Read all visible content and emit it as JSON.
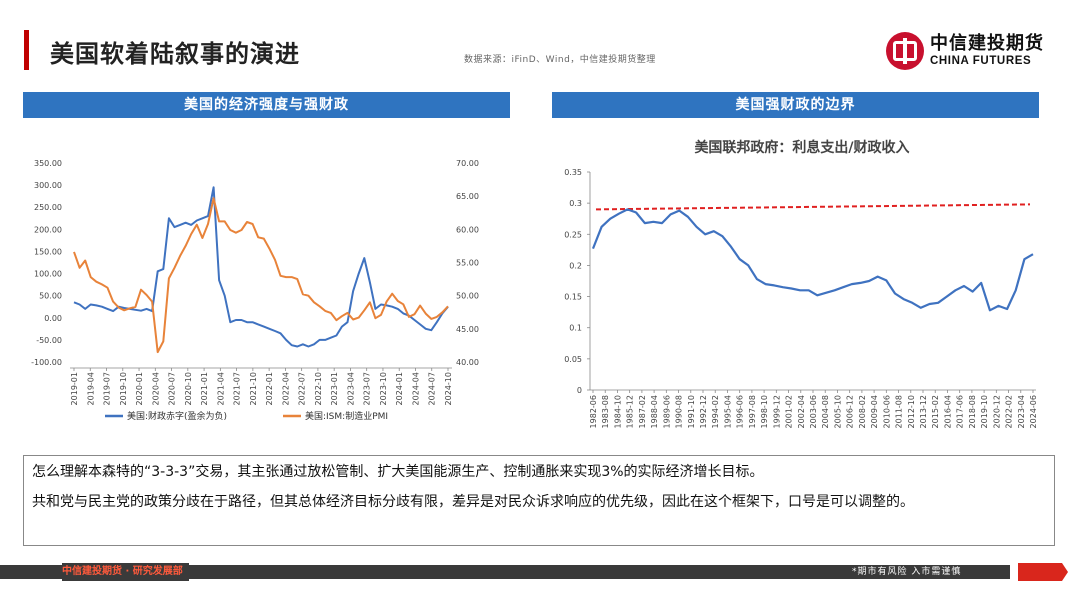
{
  "header": {
    "title": "美国软着陆叙事的演进",
    "source": "数据来源：iFinD、Wind，中信建投期货整理",
    "logo_cn": "中信建投期货",
    "logo_en": "CHINA FUTURES"
  },
  "panels": {
    "left_title": "美国的经济强度与强财政",
    "right_title": "美国强财政的边界"
  },
  "colors": {
    "accent_red": "#c00000",
    "panel_blue": "#2f74c0",
    "series_blue": "#3f72c0",
    "series_orange": "#e8833a",
    "dashed_red": "#e02020"
  },
  "chart_data": [
    {
      "type": "line",
      "title": "",
      "x_ticks": [
        "2019-01",
        "2019-04",
        "2019-07",
        "2019-10",
        "2020-01",
        "2020-04",
        "2020-07",
        "2020-10",
        "2021-01",
        "2021-04",
        "2021-07",
        "2021-10",
        "2022-01",
        "2022-04",
        "2022-07",
        "2022-10",
        "2023-01",
        "2023-04",
        "2023-07",
        "2023-10",
        "2024-01",
        "2024-04",
        "2024-07",
        "2024-10"
      ],
      "y_left": {
        "range": [
          -100,
          350
        ],
        "ticks": [
          "-100.00",
          "-50.00",
          "0.00",
          "50.00",
          "100.00",
          "150.00",
          "200.00",
          "250.00",
          "300.00",
          "350.00"
        ]
      },
      "y_right": {
        "range": [
          40,
          70
        ],
        "ticks": [
          "40.00",
          "45.00",
          "50.00",
          "55.00",
          "60.00",
          "65.00",
          "70.00"
        ]
      },
      "legend_position": "bottom",
      "series": [
        {
          "name": "美国:财政赤字(盈余为负)",
          "axis": "left",
          "color": "#3f72c0",
          "values": [
            35,
            30,
            20,
            30,
            28,
            25,
            20,
            15,
            25,
            22,
            20,
            18,
            16,
            20,
            15,
            105,
            110,
            225,
            205,
            210,
            215,
            210,
            220,
            225,
            230,
            295,
            85,
            50,
            -10,
            -5,
            -5,
            -10,
            -10,
            -15,
            -20,
            -25,
            -30,
            -35,
            -50,
            -62,
            -65,
            -60,
            -65,
            -60,
            -50,
            -50,
            -45,
            -40,
            -20,
            -10,
            60,
            100,
            135,
            80,
            20,
            30,
            28,
            25,
            20,
            10,
            5,
            -5,
            -15,
            -25,
            -28,
            -10,
            10,
            25
          ]
        },
        {
          "name": "美国:ISM:制造业PMI",
          "axis": "right",
          "color": "#e8833a",
          "values": [
            56.6,
            54.2,
            55.3,
            52.8,
            52.1,
            51.7,
            51.2,
            49.1,
            48.2,
            47.8,
            48.1,
            48.3,
            50.9,
            50.1,
            49.1,
            41.5,
            43.1,
            52.6,
            54.2,
            56.0,
            57.5,
            59.3,
            60.7,
            58.7,
            60.8,
            64.7,
            61.2,
            61.2,
            59.9,
            59.5,
            59.9,
            61.1,
            60.8,
            58.8,
            58.6,
            57.1,
            55.4,
            53.0,
            52.8,
            52.8,
            52.5,
            50.2,
            50.0,
            49.0,
            48.4,
            47.7,
            47.4,
            46.3,
            46.9,
            47.4,
            46.4,
            46.7,
            47.8,
            49.0,
            46.6,
            47.1,
            49.1,
            50.3,
            49.2,
            48.7,
            46.8,
            47.2,
            48.5,
            47.3,
            46.5,
            46.8,
            47.5,
            48.4
          ]
        }
      ]
    },
    {
      "type": "line",
      "title": "美国联邦政府：利息支出/财政收入",
      "x_ticks": [
        "1982-06",
        "1983-08",
        "1984-10",
        "1985-12",
        "1987-02",
        "1988-04",
        "1989-06",
        "1990-08",
        "1991-10",
        "1992-12",
        "1994-02",
        "1995-04",
        "1996-06",
        "1997-08",
        "1998-10",
        "1999-12",
        "2001-02",
        "2002-04",
        "2003-06",
        "2004-08",
        "2005-10",
        "2006-12",
        "2008-02",
        "2009-04",
        "2010-06",
        "2011-08",
        "2012-10",
        "2013-12",
        "2015-02",
        "2016-04",
        "2017-06",
        "2018-08",
        "2019-10",
        "2020-12",
        "2022-02",
        "2023-04",
        "2024-06"
      ],
      "y": {
        "range": [
          0,
          0.35
        ],
        "ticks": [
          "0",
          "0.05",
          "0.1",
          "0.15",
          "0.2",
          "0.25",
          "0.3",
          "0.35"
        ]
      },
      "reference_line": {
        "style": "dashed",
        "color": "#e02020",
        "from": 0.29,
        "to": 0.298
      },
      "series": [
        {
          "name": "",
          "color": "#3f72c0",
          "values": [
            0.227,
            0.262,
            0.275,
            0.283,
            0.29,
            0.285,
            0.268,
            0.27,
            0.268,
            0.282,
            0.288,
            0.278,
            0.262,
            0.25,
            0.255,
            0.247,
            0.23,
            0.21,
            0.2,
            0.178,
            0.17,
            0.168,
            0.165,
            0.163,
            0.16,
            0.16,
            0.152,
            0.156,
            0.16,
            0.165,
            0.17,
            0.172,
            0.175,
            0.182,
            0.176,
            0.155,
            0.146,
            0.14,
            0.132,
            0.138,
            0.14,
            0.15,
            0.16,
            0.167,
            0.158,
            0.172,
            0.128,
            0.135,
            0.13,
            0.16,
            0.21,
            0.218
          ]
        }
      ]
    }
  ],
  "text": {
    "p1": "怎么理解本森特的“3-3-3”交易，其主张通过放松管制、扩大美国能源生产、控制通胀来实现3%的实际经济增长目标。",
    "p2": "共和党与民主党的政策分歧在于路径，但其总体经济目标分歧有限，差异是对民众诉求响应的优先级，因此在这个框架下，口号是可以调整的。"
  },
  "footer": {
    "left": "中信建投期货 · 研究发展部",
    "right": "*期市有风险  入市需谨慎"
  }
}
